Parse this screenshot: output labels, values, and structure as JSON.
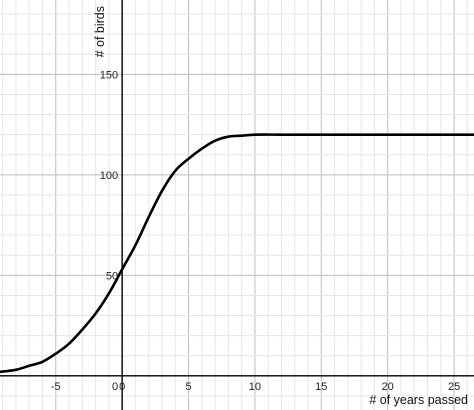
{
  "chart_data": {
    "type": "line",
    "title": "",
    "xlabel": "# of years passed",
    "ylabel": "# of birds",
    "xlim": [
      -9.2,
      26.5
    ],
    "ylim": [
      -17,
      187
    ],
    "x_ticks": [
      -5,
      0,
      5,
      10,
      15,
      20,
      25
    ],
    "y_ticks": [
      50,
      100,
      150
    ],
    "x_tick_labels": [
      "-5",
      "0",
      "5",
      "10",
      "15",
      "20",
      "25"
    ],
    "y_tick_labels": [
      "50",
      "100",
      "150"
    ],
    "origin_label": "0",
    "grid": true,
    "legend": "none",
    "series": [
      {
        "color": "#000000",
        "x": [
          -9.2,
          -8,
          -7,
          -6,
          -5,
          -4,
          -3,
          -2,
          -1,
          0,
          1,
          2,
          3,
          4,
          5,
          6,
          7,
          8,
          9,
          10,
          12,
          14,
          16,
          18,
          20,
          22,
          24,
          26.5
        ],
        "y": [
          2,
          3,
          5,
          7,
          11,
          16,
          23,
          31,
          41,
          53,
          65,
          79,
          92,
          102,
          108,
          113,
          117,
          119,
          119.5,
          120,
          120,
          120,
          120,
          120,
          120,
          120,
          120,
          120
        ]
      }
    ]
  }
}
